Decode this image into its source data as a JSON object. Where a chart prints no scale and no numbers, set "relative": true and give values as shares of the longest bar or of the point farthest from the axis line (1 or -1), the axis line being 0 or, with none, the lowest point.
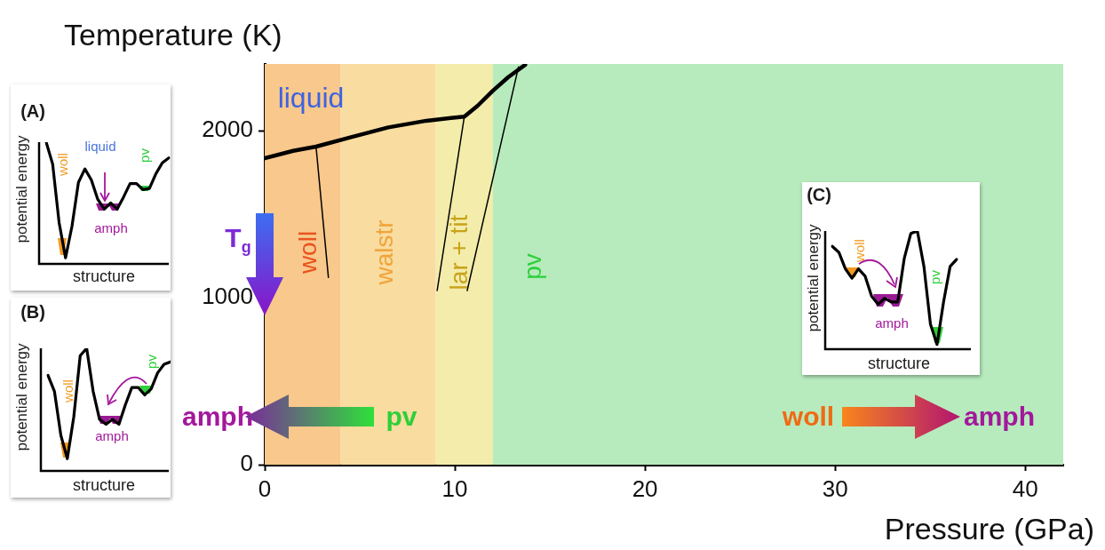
{
  "chart_data": [
    {
      "type": "line",
      "xlabel": "Pressure (GPa)",
      "ylabel": "Temperature (K)",
      "xlim": [
        0,
        42
      ],
      "xticks": [
        0,
        10,
        20,
        30,
        40
      ],
      "ylim": [
        0,
        2400
      ],
      "yticks": [
        0,
        1000,
        2000
      ],
      "grid": false,
      "legend": false,
      "marker": "none",
      "line_style": "solid",
      "series": [
        {
          "color": "#000000",
          "x": [
            0,
            1.5,
            2.7,
            4.5,
            6.5,
            8.5,
            10.5,
            11.2,
            12,
            12.8,
            13.7
          ],
          "values": [
            1835,
            1880,
            1905,
            1960,
            2020,
            2060,
            2085,
            2150,
            2240,
            2320,
            2395
          ]
        },
        {
          "color": "#000000",
          "x": [
            2.7,
            3.35
          ],
          "values": [
            1905,
            1122
          ]
        },
        {
          "color": "#000000",
          "x": [
            10.5,
            9.07
          ],
          "values": [
            2085,
            1043
          ]
        },
        {
          "color": "#000000",
          "x": [
            13.35,
            10.65
          ],
          "values": [
            2383,
            1043
          ]
        }
      ],
      "bands": [
        {
          "axis": "x",
          "from": 0,
          "to": 4,
          "color": "#f8c88c"
        },
        {
          "axis": "x",
          "from": 4,
          "to": 9,
          "color": "#f9dca0"
        },
        {
          "axis": "x",
          "from": 9,
          "to": 12,
          "color": "#f3ecaa"
        },
        {
          "axis": "x",
          "from": 12,
          "to": 42,
          "color": "#b7ebbd"
        }
      ],
      "annotations": [
        {
          "text": "T$_{g}$",
          "x": 0,
          "y": 900
        },
        "liquid",
        "woll",
        "walstr",
        "lar + tit",
        "pv",
        "amph",
        "pv",
        "woll",
        "amph"
      ]
    },
    {
      "type": "line",
      "relative": true,
      "title": "(A)",
      "xlabel": "structure",
      "ylabel": "potential energy",
      "marker": "none",
      "categories": [
        null,
        null,
        null,
        null,
        null,
        null,
        null,
        null,
        null,
        null,
        null,
        null,
        null,
        null,
        null,
        null,
        null,
        null,
        null,
        null
      ],
      "series": [
        {
          "color": "#000000",
          "values": [
            1,
            0.82,
            0.34,
            0.05,
            0.31,
            0.67,
            0.78,
            0.69,
            0.53,
            0.45,
            0.5,
            0.45,
            0.55,
            0.66,
            0.66,
            0.61,
            0.62,
            0.74,
            0.83,
            0.87
          ]
        }
      ],
      "annotations": [
        "liquid",
        "woll",
        "amph",
        "pv"
      ]
    },
    {
      "type": "line",
      "relative": true,
      "title": "(B)",
      "xlabel": "structure",
      "ylabel": "potential energy",
      "marker": "none",
      "categories": [
        null,
        null,
        null,
        null,
        null,
        null,
        null,
        null,
        null,
        null,
        null,
        null,
        null,
        null,
        null,
        null,
        null,
        null,
        null,
        null
      ],
      "series": [
        {
          "color": "#000000",
          "values": [
            0.78,
            0.65,
            0.29,
            0.1,
            0.44,
            0.94,
            1,
            0.65,
            0.42,
            0.38,
            0.42,
            0.38,
            0.54,
            0.68,
            0.68,
            0.62,
            0.67,
            0.8,
            0.87,
            0.89
          ]
        }
      ],
      "annotations": [
        "woll",
        "amph",
        "pv"
      ]
    },
    {
      "type": "line",
      "relative": true,
      "title": "(C)",
      "xlabel": "structure",
      "ylabel": "potential energy",
      "marker": "none",
      "categories": [
        null,
        null,
        null,
        null,
        null,
        null,
        null,
        null,
        null,
        null,
        null,
        null,
        null,
        null,
        null,
        null,
        null,
        null,
        null,
        null
      ],
      "series": [
        {
          "color": "#000000",
          "values": [
            0.87,
            0.82,
            0.68,
            0.6,
            0.68,
            0.62,
            0.45,
            0.38,
            0.43,
            0.4,
            0.4,
            0.77,
            0.98,
            1,
            0.7,
            0.21,
            0.04,
            0.4,
            0.7,
            0.76
          ]
        }
      ],
      "annotations": [
        "woll",
        "amph",
        "pv"
      ]
    }
  ]
}
